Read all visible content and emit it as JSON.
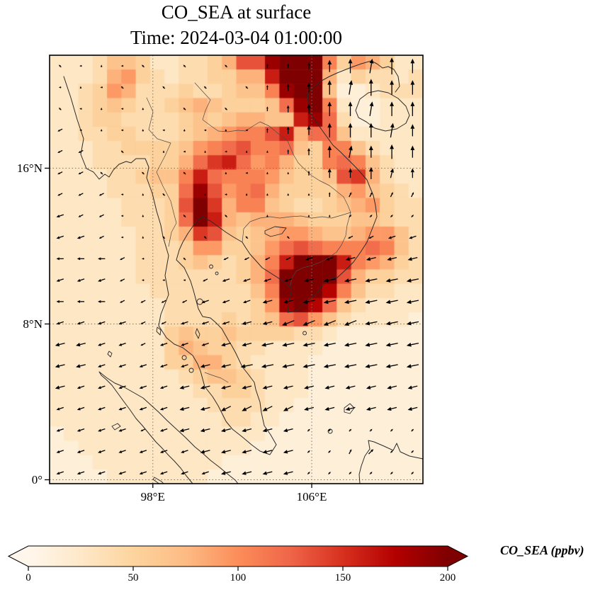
{
  "figure": {
    "title": "CO_SEA at surface",
    "subtitle": "Time: 2024-03-04 01:00:00"
  },
  "axes": {
    "lon_range": [
      92.8,
      111.6
    ],
    "lat_range": [
      -0.2,
      21.8
    ],
    "x_ticks": [
      {
        "lon": 98,
        "label": "98°E"
      },
      {
        "lon": 106,
        "label": "106°E"
      }
    ],
    "y_ticks": [
      {
        "lat": 16,
        "label": "16°N"
      },
      {
        "lat": 8,
        "label": "8°N"
      },
      {
        "lat": 0,
        "label": "0°"
      }
    ],
    "gridlines": "dotted"
  },
  "colorbar": {
    "label": "CO_SEA (ppbv)",
    "ticks": [
      0,
      50,
      100,
      150,
      200
    ],
    "range": [
      0,
      200
    ],
    "extend": "both",
    "colormap": "OrRd",
    "colors": [
      "#fff7ec",
      "#fee8c8",
      "#fdd49e",
      "#fdbb84",
      "#fc8d59",
      "#ef6548",
      "#d7301f",
      "#b30000",
      "#7f0000"
    ]
  },
  "chart_data": {
    "type": "heatmap",
    "title": "CO_SEA at surface",
    "time": "2024-03-04 01:00:00",
    "variable": "CO_SEA",
    "units": "ppbv",
    "level": "surface",
    "value_encoding": "each hex digit d (0-15) is one pcolormesh cell; concentration approx d/15*220 ppbv; f = saturated dark red (>200)",
    "heatmap_grid": {
      "cols": 26,
      "rows": 30,
      "lon_range": [
        92.8,
        111.6
      ],
      "lat_range": [
        -0.2,
        21.8
      ],
      "rows_hex": [
        "2223554223346aaefff8476422",
        "222367432334466cfff6243323",
        "2234763334334558eff5112333",
        "22345433456544459ef8211222",
        "22344333345456655ce9311222",
        "223344333456788ac699522222",
        "2223344445789a889548853222",
        "22233334469bc9786448985322",
        "2222334558c988875445ab6322",
        "2222333449ea78964444675432",
        "222223334afb68854334567433",
        "2222233349fc65666544455433",
        "2222223346ba54567765567753",
        "22222233347744579a98889853",
        "2222223334543468cfffc87643",
        "2222223333333469ffffa64433",
        "2222222333333358fffd853322",
        "2222222233333347efd9532222",
        "22222222333343459a75322221",
        "22222222454454444332111111",
        "22222222465443322221111111",
        "22222222446643222211111111",
        "22222222234554322211111111",
        "22222222223344322211111111",
        "22222222222333322111111111",
        "22222222222233221111111111",
        "12222222222222211111111111",
        "11222222222222111111111111",
        "11122222222211111111111111",
        "11112222222111111111111111"
      ]
    },
    "wind_quiver": {
      "cols": 18,
      "rows": 20,
      "encoding": "hex digit d -> wind component (d-7)/7 (u east, v north)",
      "u_rows": [
        "667667676777777877",
        "676676767677778777",
        "667677676777777877",
        "567676767677777787",
        "557677676777778777",
        "556767677677777787",
        "555676776777778888",
        "455677676777778888",
        "445676767676775544",
        "444567675555443333",
        "444566654444322222",
        "444555544433222222",
        "444455444332222222",
        "334454443322222222",
        "334444433222222222",
        "344444333333333333",
        "444444333333333333",
        "444454333333888888",
        "444444433333888988",
        "444444443333888888"
      ],
      "v_rows": [
        "878787878799acdded",
        "78787878789abddedd",
        "87878787879abddddd",
        "67878787879abddddc",
        "667878787889acccdc",
        "6687878787889bbcbb",
        "666788787888899999",
        "666787878787888888",
        "666788787878776666",
        "777677876666666666",
        "666677766666666666",
        "777666666666666666",
        "666666666665555666",
        "666666666666666666",
        "666666666666666666",
        "666666666666666666",
        "666666665555666666",
        "666666666666888888",
        "666666666666889988",
        "666666666666888888"
      ]
    },
    "map_overlay": {
      "coastline_paths": [
        "M20,30 L30,60 L39,91 L48,118 L44,140 L52,160 L62,165 L70,175 L78,168 L84,172 L90,162 L98,154 L108,150 L115,152 L122,146 L135,146 L140,158 L137,173 L145,195 L151,220 L157,240 L160,256 L168,283 L163,311 L168,338 L157,366 L154,382 L165,399 L176,408 L188,413 L202,424 L209,436 L213,446 L219,468 L230,482 L238,495 L249,517 L258,528 L272,539 L285,550 L297,559 L311,564 L320,550 L312,536 L303,523 L299,505 L297,490 L291,472 L289,462 L280,450 L272,440 L263,421 L257,410 L252,402 L243,386 L234,377 L227,371 L216,369 L210,358 L207,347 L203,332 L199,319 L190,300 L179,289 L183,275 L188,264 L195,252 L202,242 L208,234 L216,228 L222,232 L227,234 L238,242 L249,250 L260,257 L272,264 L277,272 L283,281 L292,291 L300,300 L311,307 L322,314 L333,322 L342,330 L338,347 L336,363 L343,362 L350,360 L360,350 L368,344 L376,338 L384,327 L392,316 L399,315 L406,314 L418,303 L429,292 L439,278 L448,264 L455,246 L462,228 L460,212 L457,198 L452,186 L448,176 L441,168 L434,160 L427,153 L420,146 L410,136 L400,127 L392,116 L384,105 L375,92 L367,80 L365,66 L364,52 L374,44 L384,36 L395,30 L406,25 L416,21 L426,17 L440,12 L454,8 L462,12 L470,18 L478,16 L486,20 L492,30 L494,44 L488,52",
        "M432,78 L438,62 L450,53 L464,50 L478,53 L492,61 L503,72 L508,85 L503,96 L490,104 L474,107 L459,103 L447,94 L436,88 Z",
        "M70,447 L80,455 L92,463 L104,468 L118,476 L132,484 L143,494 L154,504 L166,516 L179,528 L192,540 L205,553 L216,562 L227,572 L240,582 L252,592 L262,600 L266,605 L202,605 L193,594 L185,583 L176,573 L168,565 L158,554 L150,546 L140,534 L131,523 L122,513 L113,500 L104,488 L96,477 L88,466 L80,458 L73,452 Z",
        "M527,570 L508,566 L495,560 L490,548 L485,558 L472,552 L458,546 L450,544 L452,556 L445,566 L440,580 L437,592 L438,605"
      ],
      "island_paths": [
        "M148,596 l10,6 l6,6 l-8,-2 l-10,-7 Z",
        "M88,524 l8,-4 l4,4 l-8,5 Z",
        "M84,418 l4,3 l-2,5 l-4,-4 Z",
        "M152,384 l5,4 l-1,7 l-5,-5 Z",
        "M212,344 a4,4 0 1,0 0.1,0 Z",
        "M190,424 a3,3 0 1,0 0.1,0 Z",
        "M200,442 a3,3 0 1,0 0.1,0 Z",
        "M416,498 l8,-6 l6,6 l-6,8 l-8,-2 Z",
        "M396,528 a3,3 0 1,0 0.1,0 Z",
        "M360,390 a2.5,2.5 0 1,0 0.1,0 Z",
        "M304,248 l14,-6 l16,2 l-6,8 l-16,4 l-8,-4 Z",
        "M208,386 l4,8 l-2,6 l-4,-8 Z",
        "M228,296 a2.5,2.5 0 1,0 0.1,0 Z",
        "M236,306 a2,2 0 1,0 0.1,0 Z"
      ],
      "border_paths": [
        "M137,60 L146,80 L140,105 L152,118 L171,124 L163,142 L151,165 L160,185 L171,206 L175,222 L179,237 L172,250 L168,270",
        "M205,39 L215,50 L227,63 L220,78 L216,91 L228,100 L238,107 L252,108 L266,106 L277,107 L287,100 L297,94 L310,100 L322,110 L336,121 L344,140 L351,152 L359,160 L370,170 L381,177 L395,184 L405,192 L415,200 L421,212 L425,222",
        "M425,222 L412,226 L398,230 L385,228 L370,230 L355,227 L340,228 L325,230 L311,228 L297,230 L283,235 L274,245 L272,264",
        "M425,222 L420,240 L418,255 L412,268 L405,278 L395,285 L383,292 L370,297 L358,300 L348,305 L342,315 L340,325",
        "M219,448 L230,452 L242,456 L252,462"
      ]
    }
  }
}
